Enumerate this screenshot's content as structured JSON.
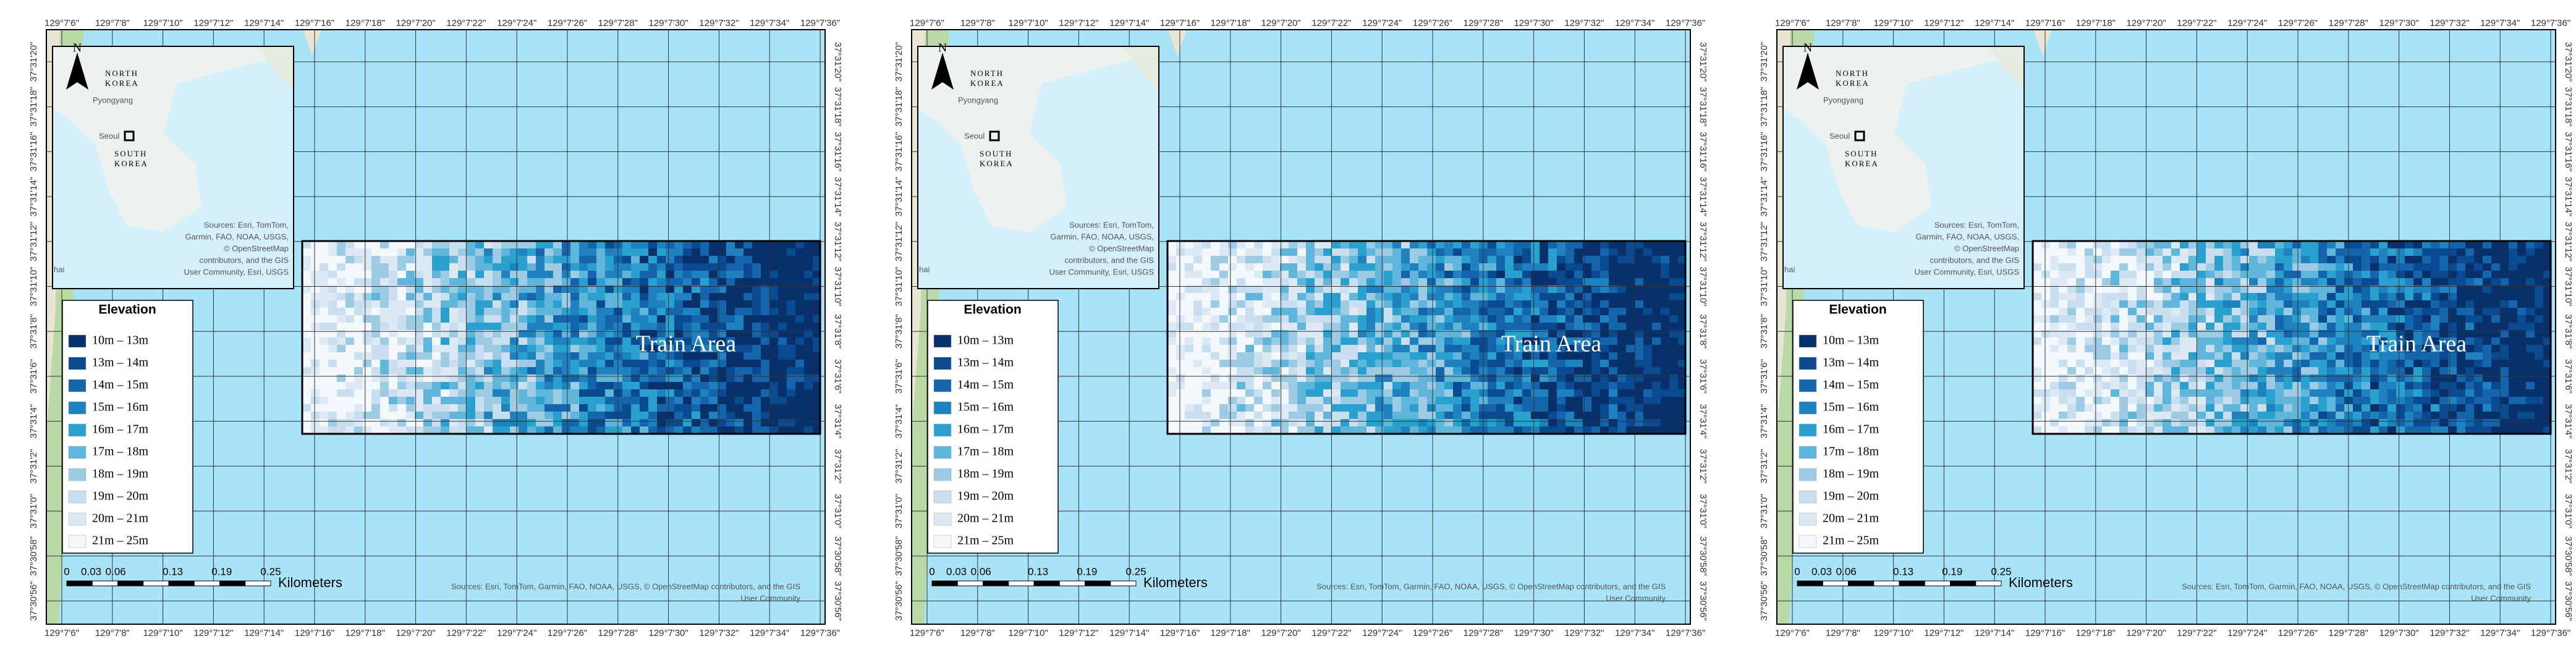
{
  "map": {
    "top_labels": [
      "129°7'6\"",
      "129°7'8\"",
      "129°7'10\"",
      "129°7'12\"",
      "129°7'14\"",
      "129°7'16\"",
      "129°7'18\"",
      "129°7'20\"",
      "129°7'22\"",
      "129°7'24\"",
      "129°7'26\"",
      "129°7'28\"",
      "129°7'30\"",
      "129°7'32\"",
      "129°7'34\"",
      "129°7'36\""
    ],
    "side_labels": [
      "37°31'20\"",
      "37°31'18\"",
      "37°31'16\"",
      "37°31'14\"",
      "37°31'12\"",
      "37°31'10\"",
      "37°31'8\"",
      "37°31'6\"",
      "37°31'4\"",
      "37°31'2\"",
      "37°31'0\"",
      "37°30'58\"",
      "37°30'56\""
    ],
    "inset": {
      "north": "N",
      "north_korea": [
        "NORTH",
        "KOREA"
      ],
      "pyongyang": "Pyongyang",
      "seoul": "Seoul",
      "south_korea": [
        "SOUTH",
        "KOREA"
      ],
      "edge_label": "hai",
      "attribution": [
        "Sources: Esri, TomTom,",
        "Garmin, FAO, NOAA, USGS,",
        "© OpenStreetMap",
        "contributors, and the GIS",
        "User Community, Esri, USGS"
      ]
    },
    "area_label": "Train Area",
    "legend": {
      "title": "Elevation",
      "items": [
        {
          "label": "10m – 13m",
          "color": "#08306b"
        },
        {
          "label": "13m – 14m",
          "color": "#0a4a90"
        },
        {
          "label": "14m – 15m",
          "color": "#1565ad"
        },
        {
          "label": "15m – 16m",
          "color": "#1f82bf"
        },
        {
          "label": "16m – 17m",
          "color": "#2aa0cf"
        },
        {
          "label": "17m – 18m",
          "color": "#5fb6da"
        },
        {
          "label": "18m – 19m",
          "color": "#9ccbe3"
        },
        {
          "label": "19m – 20m",
          "color": "#c9dfef"
        },
        {
          "label": "20m – 21m",
          "color": "#dde9f4"
        },
        {
          "label": "21m – 25m",
          "color": "#f3f8fc"
        }
      ]
    },
    "scale": {
      "ticks": [
        "0",
        "0.03",
        "0.06",
        "0.13",
        "0.19",
        "0.25"
      ],
      "unit": "Kilometers"
    },
    "attribution": [
      "Sources: Esri, TomTom, Garmin, FAO, NOAA, USGS, © OpenStreetMap contributors, and the GIS",
      "User Community"
    ]
  }
}
